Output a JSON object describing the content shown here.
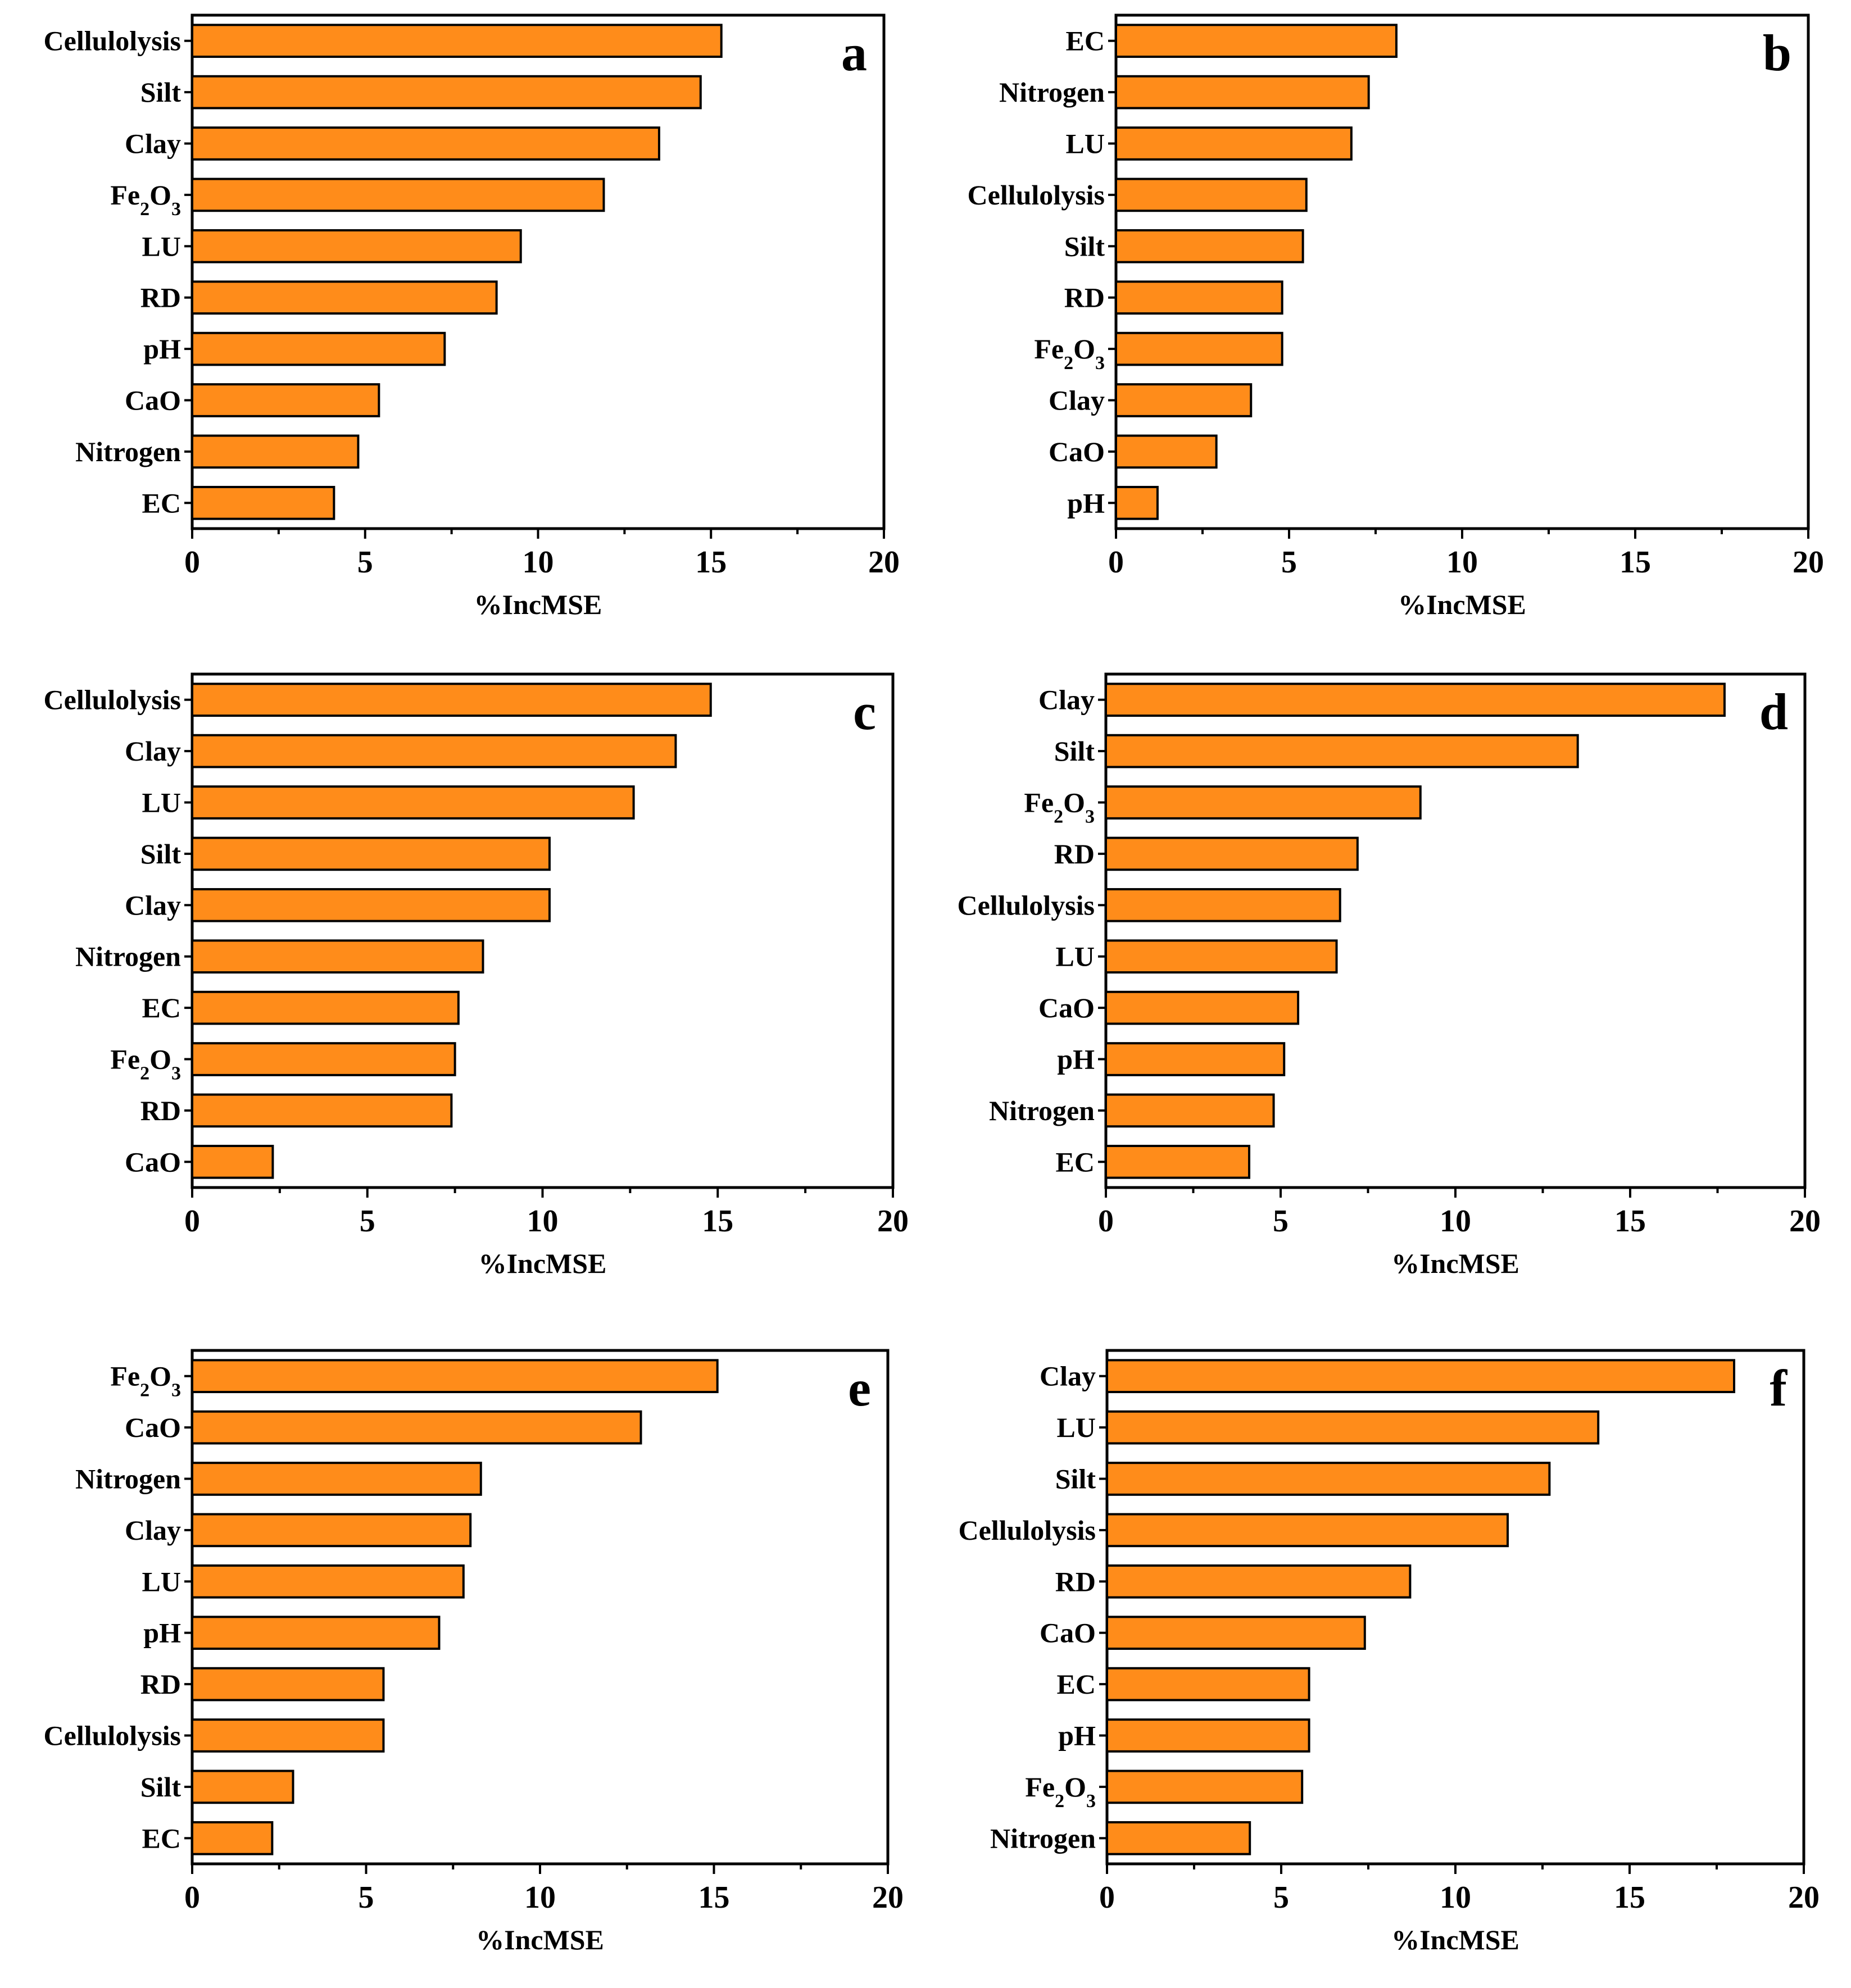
{
  "figure": {
    "bar_color": "#FF8C1A",
    "bar_stroke": "#000000"
  },
  "chart_data": [
    {
      "type": "bar",
      "orientation": "horizontal",
      "panel_label": "a",
      "categories": [
        "Cellulolysis",
        "Silt",
        "Clay",
        "Fe2O3",
        "LU",
        "RD",
        "pH",
        "CaO",
        "Nitrogen",
        "EC"
      ],
      "values": [
        15.3,
        14.7,
        13.5,
        11.9,
        9.5,
        8.8,
        7.3,
        5.4,
        4.8,
        4.1
      ],
      "xlabel": "%IncMSE",
      "xlim": [
        0,
        20
      ],
      "xticks": [
        "0",
        "5",
        "10",
        "15",
        "20"
      ]
    },
    {
      "type": "bar",
      "orientation": "horizontal",
      "panel_label": "b",
      "categories": [
        "EC",
        "Nitrogen",
        "LU",
        "Cellulolysis",
        "Silt",
        "RD",
        "Fe2O3",
        "Clay",
        "CaO",
        "pH"
      ],
      "values": [
        8.1,
        7.3,
        6.8,
        5.5,
        5.4,
        4.8,
        4.8,
        3.9,
        2.9,
        1.2
      ],
      "xlabel": "%IncMSE",
      "xlim": [
        0,
        20
      ],
      "xticks": [
        "0",
        "5",
        "10",
        "15",
        "20"
      ]
    },
    {
      "type": "bar",
      "orientation": "horizontal",
      "panel_label": "c",
      "categories": [
        "Cellulolysis",
        "Clay",
        "LU",
        "Silt",
        "Clay",
        "Nitrogen",
        "EC",
        "Fe2O3",
        "RD",
        "CaO"
      ],
      "values": [
        14.8,
        13.8,
        12.6,
        10.2,
        10.2,
        8.3,
        7.6,
        7.5,
        7.4,
        2.3
      ],
      "xlabel": "%IncMSE",
      "xlim": [
        0,
        20
      ],
      "xticks": [
        "0",
        "5",
        "10",
        "15",
        "20"
      ]
    },
    {
      "type": "bar",
      "orientation": "horizontal",
      "panel_label": "d",
      "categories": [
        "Clay",
        "Silt",
        "Fe2O3",
        "RD",
        "Cellulolysis",
        "LU",
        "CaO",
        "pH",
        "Nitrogen",
        "EC"
      ],
      "values": [
        17.7,
        13.5,
        9.0,
        7.2,
        6.7,
        6.6,
        5.5,
        5.1,
        4.8,
        4.1
      ],
      "xlabel": "%IncMSE",
      "xlim": [
        0,
        20
      ],
      "xticks": [
        "0",
        "5",
        "10",
        "15",
        "20"
      ]
    },
    {
      "type": "bar",
      "orientation": "horizontal",
      "panel_label": "e",
      "categories": [
        "Fe2O3",
        "CaO",
        "Nitrogen",
        "Clay",
        "LU",
        "pH",
        "RD",
        "Cellulolysis",
        "Silt",
        "EC"
      ],
      "values": [
        15.1,
        12.9,
        8.3,
        8.0,
        7.8,
        7.1,
        5.5,
        5.5,
        2.9,
        2.3
      ],
      "xlabel": "%IncMSE",
      "xlim": [
        0,
        20
      ],
      "xticks": [
        "0",
        "5",
        "10",
        "15",
        "20"
      ]
    },
    {
      "type": "bar",
      "orientation": "horizontal",
      "panel_label": "f",
      "categories": [
        "Clay",
        "LU",
        "Silt",
        "Cellulolysis",
        "RD",
        "CaO",
        "EC",
        "pH",
        "Fe2O3",
        "Nitrogen"
      ],
      "values": [
        18.0,
        14.1,
        12.7,
        11.5,
        8.7,
        7.4,
        5.8,
        5.8,
        5.6,
        4.1
      ],
      "xlabel": "%IncMSE",
      "xlim": [
        0,
        20
      ],
      "xticks": [
        "0",
        "5",
        "10",
        "15",
        "20"
      ]
    }
  ]
}
